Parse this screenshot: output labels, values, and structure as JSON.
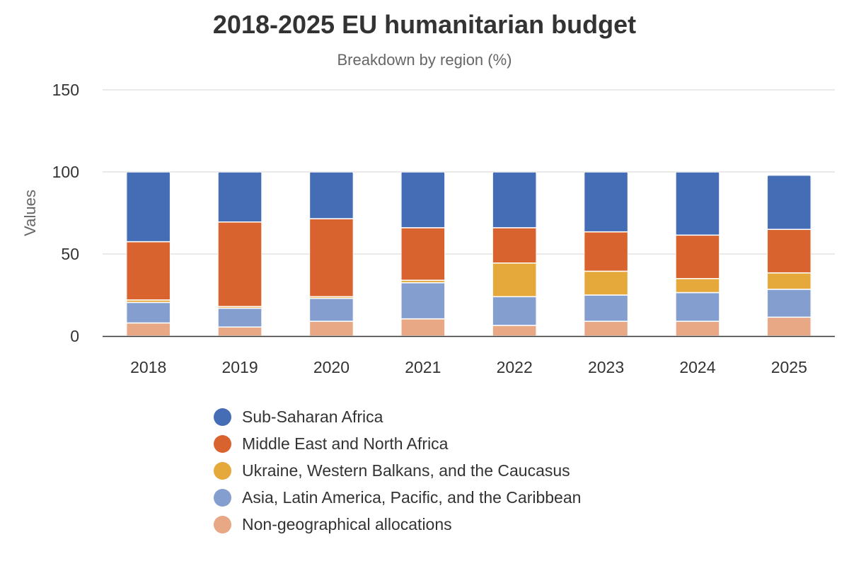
{
  "chart_data": {
    "type": "bar",
    "stacked": true,
    "title": "2018-2025 EU humanitarian budget",
    "subtitle": "Breakdown by region (%)",
    "ylabel": "Values",
    "xlabel": "",
    "ylim": [
      0,
      150
    ],
    "yticks": [
      "0",
      "50",
      "100",
      "150"
    ],
    "grid": true,
    "legend_position": "bottom",
    "categories": [
      "2018",
      "2019",
      "2020",
      "2021",
      "2022",
      "2023",
      "2024",
      "2025"
    ],
    "series": [
      {
        "name": "Non-geographical allocations",
        "color": "#E8A785",
        "values": [
          8,
          5.5,
          9,
          10.5,
          6.5,
          9,
          9,
          11.5
        ]
      },
      {
        "name": "Asia, Latin America, Pacific, and the Caribbean",
        "color": "#849ECF",
        "values": [
          12.5,
          11.5,
          14,
          22,
          17.5,
          16,
          17.5,
          17
        ]
      },
      {
        "name": "Ukraine, Western Balkans, and the Caucasus",
        "color": "#E5A83A",
        "values": [
          1.5,
          1,
          1,
          1.5,
          20.5,
          14.5,
          8.5,
          10
        ]
      },
      {
        "name": "Middle East and North Africa",
        "color": "#D9632F",
        "values": [
          35.5,
          51.5,
          47.5,
          32,
          21.5,
          24,
          26.5,
          26.5
        ]
      },
      {
        "name": "Sub-Saharan Africa",
        "color": "#456DB5",
        "values": [
          42.5,
          30.5,
          28.5,
          34,
          34,
          36.5,
          38.5,
          33
        ]
      }
    ]
  }
}
